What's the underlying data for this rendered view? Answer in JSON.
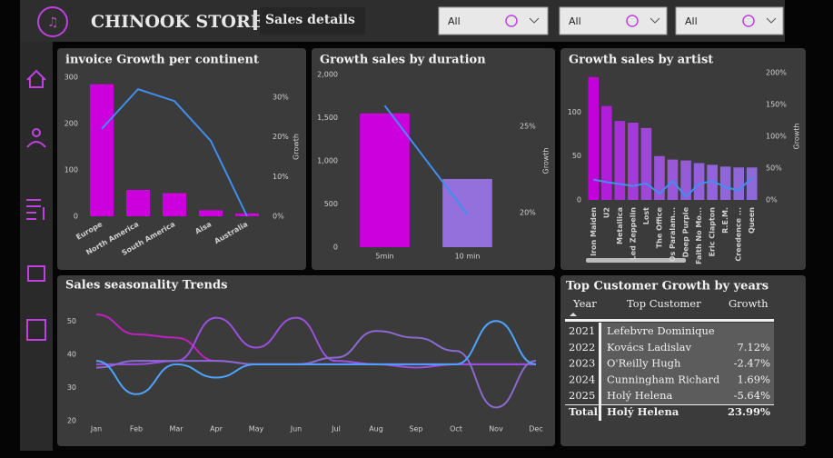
{
  "header": {
    "title": "CHINOOK STORE",
    "subtitle": "Sales details"
  },
  "filters": [
    "All",
    "All",
    "All"
  ],
  "chart_data": [
    {
      "type": "combo",
      "title": "invoice Growth per continent",
      "categories": [
        "Europe",
        "North America",
        "South America",
        "Aisa",
        "Australia"
      ],
      "series": [
        {
          "type": "bar",
          "colors": [
            "#cc00dd",
            "#cc00dd",
            "#cc00dd",
            "#cc00dd",
            "#cc00dd"
          ],
          "values": [
            285,
            57,
            50,
            13,
            6
          ]
        },
        {
          "type": "line",
          "axis": "y2",
          "color": "#3f8ef0",
          "values": [
            22,
            32,
            29,
            19,
            0
          ]
        }
      ],
      "ylim": [
        0,
        300
      ],
      "yticks": [
        0,
        100,
        200,
        300
      ],
      "y2lim": [
        0,
        35
      ],
      "y2ticks": [
        {
          "value": 0,
          "label": "0%"
        },
        {
          "value": 10,
          "label": "10%"
        },
        {
          "value": 20,
          "label": "20%"
        },
        {
          "value": 30,
          "label": "30%"
        }
      ],
      "y2label": "Growth"
    },
    {
      "type": "combo",
      "title": "Growth sales by duration",
      "categories": [
        "5min",
        "10 min"
      ],
      "series": [
        {
          "type": "bar",
          "colors": [
            "#cc00dd",
            "#9370db"
          ],
          "values": [
            1550,
            790
          ]
        },
        {
          "type": "line",
          "axis": "y2",
          "color": "#3f8ef0",
          "values": [
            26.2,
            19.9
          ]
        }
      ],
      "ylim": [
        0,
        2000
      ],
      "yticks": [
        0,
        500,
        {
          "value": 1000,
          "label": "1,000"
        },
        {
          "value": 1500,
          "label": "1,500"
        },
        {
          "value": 2000,
          "label": "2,000"
        }
      ],
      "y2lim": [
        18,
        28
      ],
      "y2ticks": [
        {
          "value": 20,
          "label": "20%"
        },
        {
          "value": 25,
          "label": "25%"
        }
      ],
      "y2label": "Growth"
    },
    {
      "type": "combo",
      "title": "Growth sales by artist",
      "categories": [
        "Iron Maiden",
        "U2",
        "Metallica",
        "Led Zeppelin",
        "Lost",
        "The Office",
        "Os Paralam...",
        "Deep Purple",
        "Faith No Mo...",
        "Eric Clapton",
        "R.E.M.",
        "Creedence ...",
        "Queen"
      ],
      "series": [
        {
          "type": "bar",
          "colors": [
            "#c400d8",
            "#b01ed8",
            "#a82ed8",
            "#a43ad8",
            "#9e48d8",
            "#9a52d8",
            "#9858d8",
            "#965cd8",
            "#9460d8",
            "#9264d8",
            "#9066d8",
            "#8e68d8",
            "#8c6ad8"
          ],
          "values": [
            140,
            107,
            90,
            88,
            82,
            50,
            46,
            45,
            42,
            40,
            38,
            37,
            37
          ]
        },
        {
          "type": "line",
          "axis": "y2",
          "color": "#3f8ef0",
          "values": [
            32,
            28,
            25,
            22,
            26,
            10,
            30,
            5,
            25,
            30,
            20,
            15,
            35
          ]
        }
      ],
      "ylim": [
        0,
        145
      ],
      "yticks": [
        0,
        50,
        100
      ],
      "y2lim": [
        0,
        200
      ],
      "y2ticks": [
        {
          "value": 0,
          "label": "0%"
        },
        {
          "value": 50,
          "label": "50%"
        },
        {
          "value": 100,
          "label": "100%"
        },
        {
          "value": 150,
          "label": "150%"
        },
        {
          "value": 200,
          "label": "200%"
        }
      ],
      "y2label": "Growth"
    },
    {
      "type": "line",
      "title": "Sales seasonality Trends",
      "categories": [
        "Jan",
        "Feb",
        "Mar",
        "Apr",
        "May",
        "Jun",
        "Jul",
        "Aug",
        "Sep",
        "Oct",
        "Nov",
        "Dec"
      ],
      "series": [
        {
          "color": "#c020c0",
          "values": [
            52,
            46,
            45,
            38,
            37,
            37,
            37,
            37,
            37,
            37,
            37,
            37
          ]
        },
        {
          "color": "#9b4fe0",
          "values": [
            37,
            37,
            38,
            51,
            42,
            51,
            38,
            37,
            36,
            37,
            37,
            37
          ]
        },
        {
          "color": "#8a6ad0",
          "values": [
            36,
            38,
            38,
            38,
            37,
            37,
            39,
            47,
            45,
            41,
            24,
            38
          ]
        },
        {
          "color": "#4da3ff",
          "values": [
            38,
            28,
            37,
            33,
            37,
            37,
            37,
            37,
            37,
            37,
            50,
            37
          ]
        }
      ],
      "ylim": [
        20,
        55
      ],
      "yticks": [
        20,
        30,
        40,
        50
      ]
    }
  ],
  "table": {
    "title": "Top Customer Growth by years",
    "columns": [
      "Year",
      "Top Customer",
      "Growth"
    ],
    "rows": [
      {
        "year": "2021",
        "customer": "Lefebvre Dominique"
      },
      {
        "year": "2022",
        "customer": "Kovács Ladislav",
        "growth": "7.12%"
      },
      {
        "year": "2023",
        "customer": "O'Reilly Hugh",
        "growth": "-2.47%"
      },
      {
        "year": "2024",
        "customer": "Cunningham Richard",
        "growth": "1.69%"
      },
      {
        "year": "2025",
        "customer": "Holý Helena",
        "growth": "-5.64%"
      }
    ],
    "total": {
      "year": "Total",
      "customer": "Holý Helena",
      "growth": "23.99%"
    }
  }
}
